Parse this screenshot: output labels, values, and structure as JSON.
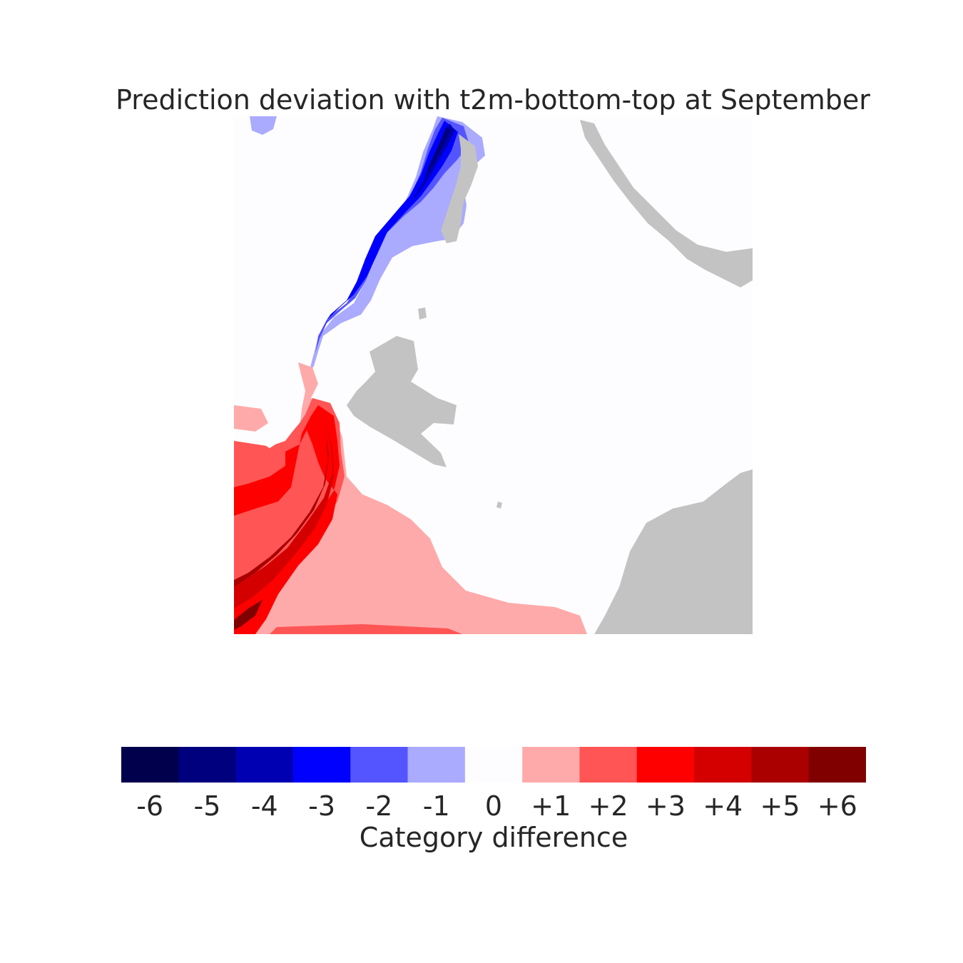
{
  "chart_data": {
    "type": "heatmap",
    "title": "Prediction deviation with t2m-bottom-top at September",
    "colorbar": {
      "label": "Category difference",
      "categories": [
        "-6",
        "-5",
        "-4",
        "-3",
        "-2",
        "-1",
        "0",
        "+1",
        "+2",
        "+3",
        "+4",
        "+5",
        "+6"
      ],
      "values": [
        -6,
        -5,
        -4,
        -3,
        -2,
        -1,
        0,
        1,
        2,
        3,
        4,
        5,
        6
      ],
      "colors": [
        "#00004c",
        "#00007f",
        "#0000b2",
        "#0000ff",
        "#5555ff",
        "#aaaaff",
        "#fdfdff",
        "#ffaaaa",
        "#ff5555",
        "#ff0000",
        "#d40000",
        "#aa0000",
        "#800000"
      ]
    },
    "land_color": "#c3c3c3",
    "grid": false,
    "axes_visible": false
  }
}
